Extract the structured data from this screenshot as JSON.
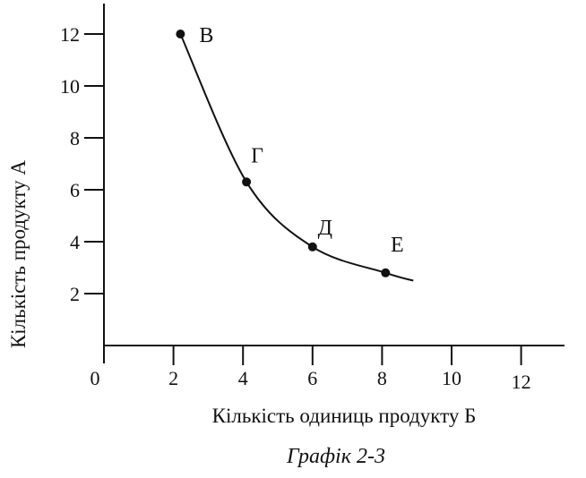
{
  "chart_data": {
    "type": "line",
    "x": [
      2.2,
      4.1,
      6.0,
      8.1
    ],
    "y": [
      12.0,
      6.3,
      3.8,
      2.8
    ],
    "curve_end": [
      8.9,
      2.5
    ],
    "point_labels": [
      "В",
      "Г",
      "Д",
      "Е"
    ],
    "x_ticks": [
      2,
      4,
      6,
      8,
      10,
      12
    ],
    "y_ticks": [
      2,
      4,
      6,
      8,
      10,
      12
    ],
    "origin_label": "0",
    "xlabel": "Кількість одиниць продукту Б",
    "ylabel": "Кількість продукту А",
    "caption": "Графік 2-3",
    "xlim": [
      0,
      13.5
    ],
    "ylim": [
      0,
      13.2
    ],
    "grid": false,
    "colors": {
      "line": "#111111",
      "axis": "#111111"
    }
  }
}
